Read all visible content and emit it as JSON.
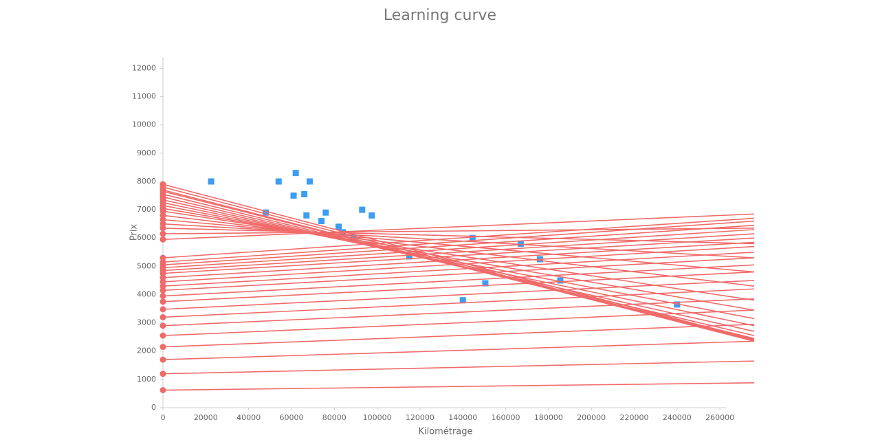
{
  "chart_data": {
    "type": "scatter",
    "title": "Learning curve",
    "x_label": "Kilométrage",
    "y_label": "Prix",
    "xlim": [
      0,
      276000
    ],
    "ylim": [
      0,
      12400
    ],
    "xticks": [
      0,
      20000,
      40000,
      60000,
      80000,
      100000,
      120000,
      140000,
      160000,
      180000,
      200000,
      220000,
      240000,
      260000
    ],
    "yticks": [
      0,
      1000,
      2000,
      3000,
      4000,
      5000,
      6000,
      7000,
      8000,
      9000,
      10000,
      11000,
      12000
    ],
    "point_color": "#3d9df3",
    "line_color": "#f06a6a",
    "x": [
      22500,
      48000,
      54000,
      61000,
      62000,
      66000,
      67000,
      68500,
      74000,
      76000,
      82000,
      84000,
      89000,
      93000,
      97500,
      115000,
      140000,
      144500,
      150500,
      167000,
      176000,
      185500,
      240000
    ],
    "values": [
      8000,
      6900,
      8000,
      7500,
      8300,
      7550,
      6800,
      8000,
      6600,
      6900,
      6400,
      6200,
      6000,
      7000,
      6800,
      5350,
      3800,
      6000,
      4400,
      5800,
      5250,
      4500,
      3650
    ],
    "lines_x": [
      0,
      276000
    ],
    "lines": [
      {
        "values": [
          620,
          880
        ]
      },
      {
        "values": [
          1200,
          1650
        ]
      },
      {
        "values": [
          1700,
          2350
        ]
      },
      {
        "values": [
          2150,
          2950
        ]
      },
      {
        "values": [
          2550,
          3450
        ]
      },
      {
        "values": [
          2900,
          3850
        ]
      },
      {
        "values": [
          3200,
          4200
        ]
      },
      {
        "values": [
          3480,
          4500
        ]
      },
      {
        "values": [
          3750,
          4800
        ]
      },
      {
        "values": [
          3950,
          5050
        ]
      },
      {
        "values": [
          4150,
          5300
        ]
      },
      {
        "values": [
          4300,
          5500
        ]
      },
      {
        "values": [
          4450,
          5700
        ]
      },
      {
        "values": [
          4600,
          5850
        ]
      },
      {
        "values": [
          4750,
          6000
        ]
      },
      {
        "values": [
          4850,
          6150
        ]
      },
      {
        "values": [
          4950,
          6300
        ]
      },
      {
        "values": [
          5050,
          6450
        ]
      },
      {
        "values": [
          5150,
          6600
        ]
      },
      {
        "values": [
          5300,
          6700
        ]
      },
      {
        "values": [
          5950,
          6850
        ]
      },
      {
        "values": [
          6150,
          6350
        ]
      },
      {
        "values": [
          6350,
          5800
        ]
      },
      {
        "values": [
          6500,
          5300
        ]
      },
      {
        "values": [
          6650,
          4800
        ]
      },
      {
        "values": [
          6800,
          4300
        ]
      },
      {
        "values": [
          6950,
          3800
        ]
      },
      {
        "values": [
          7050,
          3450
        ]
      },
      {
        "values": [
          7150,
          3150
        ]
      },
      {
        "values": [
          7250,
          2900
        ]
      },
      {
        "values": [
          7350,
          2700
        ]
      },
      {
        "values": [
          7450,
          2550
        ]
      },
      {
        "values": [
          7550,
          2450
        ]
      },
      {
        "values": [
          7650,
          2400
        ]
      },
      {
        "values": [
          7700,
          2350
        ]
      },
      {
        "values": [
          7800,
          2380
        ]
      },
      {
        "values": [
          7900,
          2420
        ]
      }
    ]
  }
}
